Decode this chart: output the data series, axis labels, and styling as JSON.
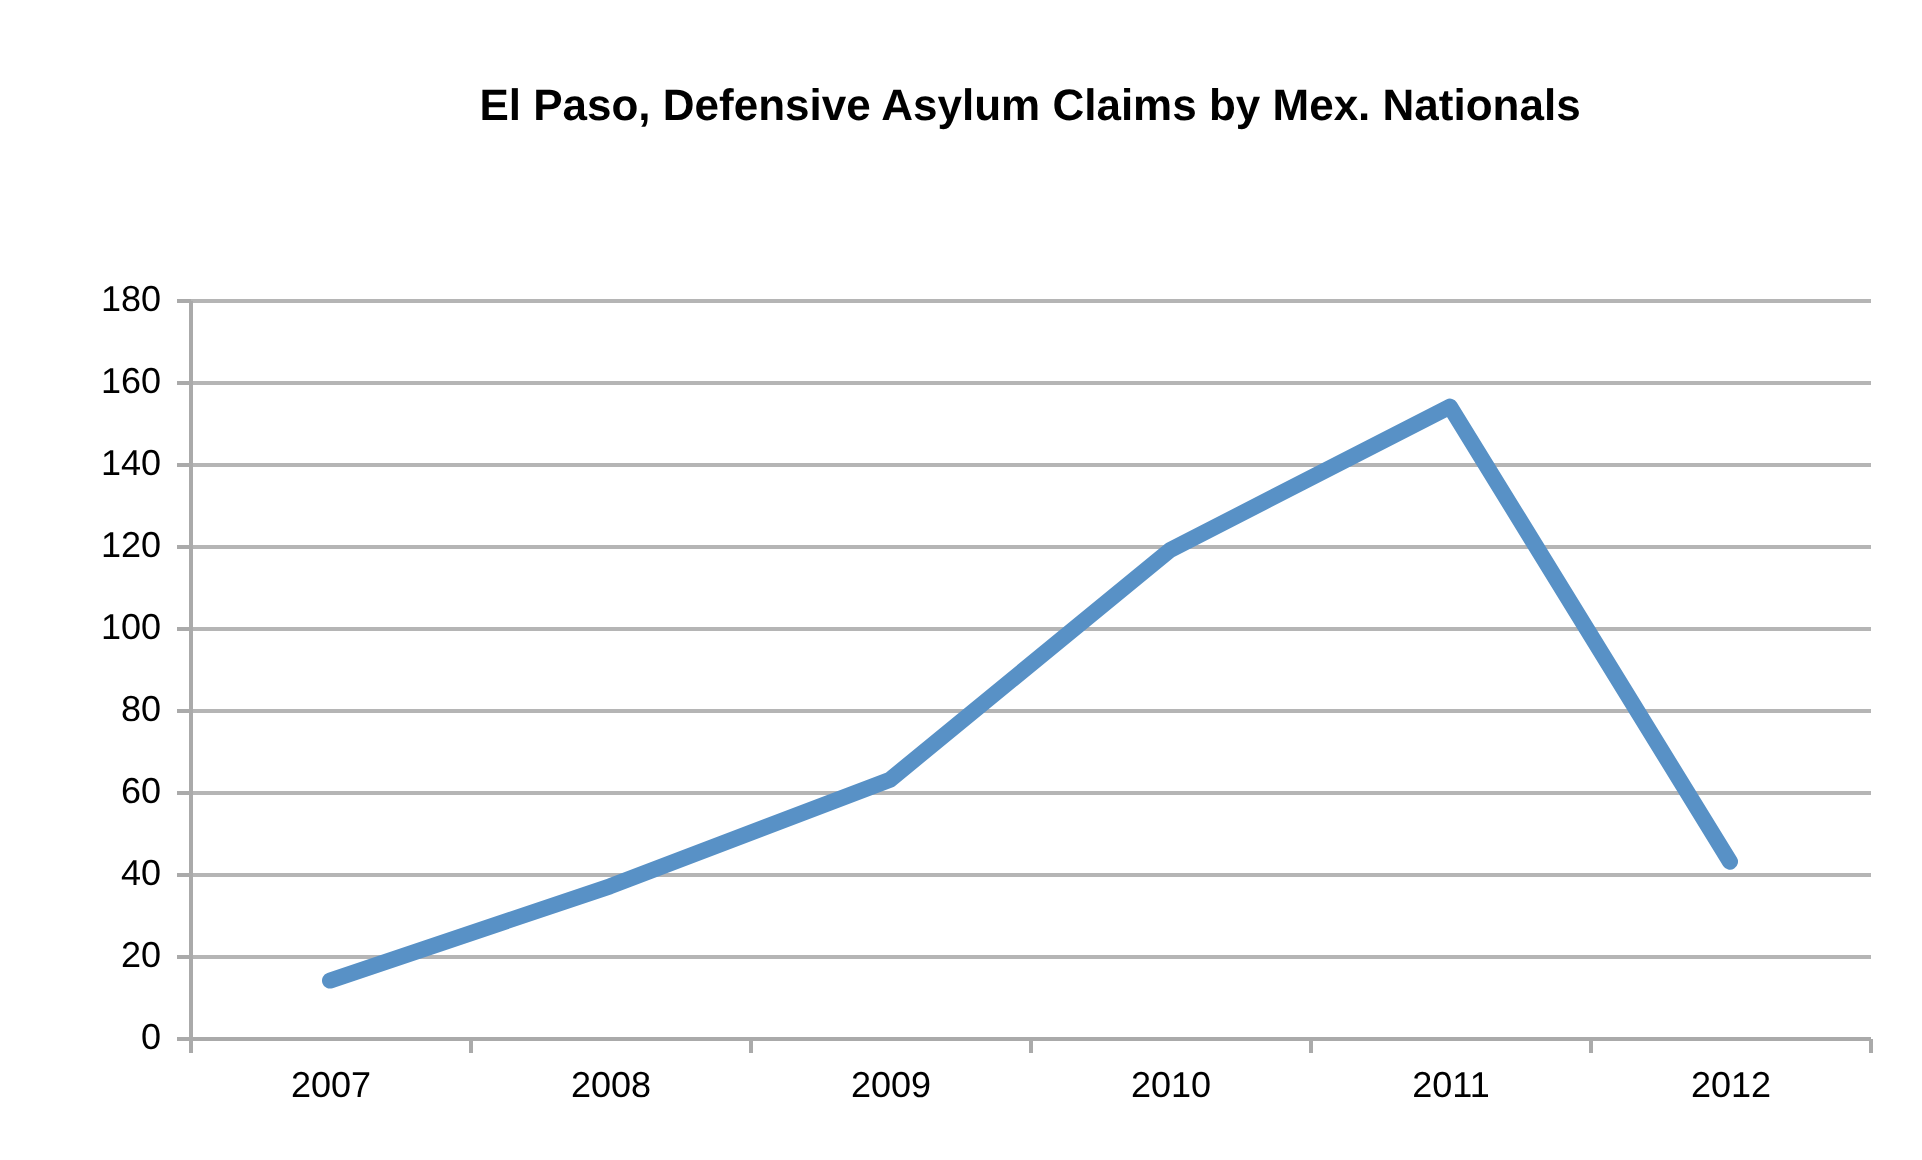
{
  "chart_data": {
    "type": "line",
    "title": "El Paso, Defensive Asylum Claims by Mex. Nationals",
    "categories": [
      "2007",
      "2008",
      "2009",
      "2010",
      "2011",
      "2012"
    ],
    "series": [
      {
        "color": "#5891c6",
        "values": [
          14,
          37,
          63,
          119,
          154,
          43
        ]
      }
    ],
    "ylim": [
      0,
      180
    ],
    "yticks": [
      0,
      20,
      40,
      60,
      80,
      100,
      120,
      140,
      160,
      180
    ],
    "grid": "y",
    "legend": false,
    "marker": "none",
    "line_style": "solid"
  }
}
